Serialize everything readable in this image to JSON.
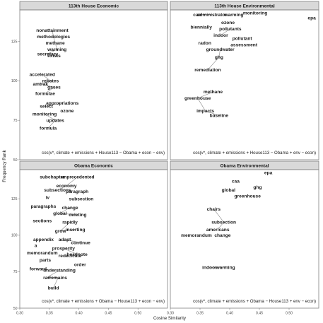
{
  "axis": {
    "xlabel": "Cosine Similarity",
    "ylabel": "Frequency Rank"
  },
  "chart_data": {
    "type": "scatter",
    "xlim": [
      0.3,
      0.55
    ],
    "ylim": [
      50,
      145
    ],
    "x_ticks": [
      0.3,
      0.35,
      0.4,
      0.45,
      0.5
    ],
    "x_tick_labels": [
      "0.30",
      "0.35",
      "0.40",
      "0.45",
      "0.50"
    ],
    "y_ticks": [
      50,
      75,
      100,
      125
    ],
    "y_tick_labels": [
      "50",
      "75",
      "100",
      "125"
    ],
    "grid": false,
    "panels": [
      {
        "title": "113th House Economic",
        "formula": "cos(v*, climate + emissions + House113 − Obama + econ − env)",
        "points": [
          {
            "label": "nonattainment",
            "x": 0.355,
            "y": 132
          },
          {
            "label": "methodologies",
            "x": 0.357,
            "y": 128
          },
          {
            "label": "methane",
            "x": 0.36,
            "y": 124
          },
          {
            "label": "warming",
            "x": 0.363,
            "y": 120
          },
          {
            "label": "secretary",
            "x": 0.347,
            "y": 117
          },
          {
            "label": "exists",
            "x": 0.358,
            "y": 116
          },
          {
            "label": "accelerated",
            "x": 0.338,
            "y": 104
          },
          {
            "label": "rebates",
            "x": 0.352,
            "y": 100
          },
          {
            "label": "amtrak",
            "x": 0.335,
            "y": 98
          },
          {
            "label": "gases",
            "x": 0.358,
            "y": 96
          },
          {
            "label": "formulae",
            "x": 0.343,
            "y": 92
          },
          {
            "label": "appropriations",
            "x": 0.372,
            "y": 86
          },
          {
            "label": "select",
            "x": 0.345,
            "y": 84
          },
          {
            "label": "ozone",
            "x": 0.38,
            "y": 81
          },
          {
            "label": "monitoring",
            "x": 0.342,
            "y": 79
          },
          {
            "label": "updates",
            "x": 0.36,
            "y": 75
          },
          {
            "label": "formula",
            "x": 0.348,
            "y": 70
          }
        ]
      },
      {
        "title": "113th House Environmental",
        "formula": "cos(v*, climate + emissions + House113 − Obama + env − econ)",
        "points": [
          {
            "label": "caa",
            "x": 0.345,
            "y": 142
          },
          {
            "label": "administrator",
            "x": 0.37,
            "y": 142
          },
          {
            "label": "warming",
            "x": 0.407,
            "y": 142
          },
          {
            "label": "monitoring",
            "x": 0.443,
            "y": 143
          },
          {
            "label": "epa",
            "x": 0.545,
            "y": 140
          },
          {
            "label": "ozone",
            "x": 0.397,
            "y": 137
          },
          {
            "label": "biennially",
            "x": 0.352,
            "y": 134
          },
          {
            "label": "pollutants",
            "x": 0.401,
            "y": 133
          },
          {
            "label": "indoor",
            "x": 0.385,
            "y": 129
          },
          {
            "label": "pollutant",
            "x": 0.421,
            "y": 127
          },
          {
            "label": "radon",
            "x": 0.358,
            "y": 124
          },
          {
            "label": "assessment",
            "x": 0.424,
            "y": 123
          },
          {
            "label": "groundwater",
            "x": 0.384,
            "y": 120
          },
          {
            "label": "ghg",
            "x": 0.382,
            "y": 115
          },
          {
            "label": "remediation",
            "x": 0.363,
            "y": 107
          },
          {
            "label": "methane",
            "x": 0.372,
            "y": 93
          },
          {
            "label": "greenhouse",
            "x": 0.346,
            "y": 89
          },
          {
            "label": "impacts",
            "x": 0.359,
            "y": 81
          },
          {
            "label": "baseline",
            "x": 0.382,
            "y": 78
          }
        ]
      },
      {
        "title": "Obama Economic",
        "formula": "cos(v*, climate + emissions + Obama − House113 + econ − env)",
        "points": [
          {
            "label": "subchapter",
            "x": 0.355,
            "y": 140
          },
          {
            "label": "unprecedented",
            "x": 0.398,
            "y": 140
          },
          {
            "label": "economy",
            "x": 0.379,
            "y": 134
          },
          {
            "label": "subsections",
            "x": 0.364,
            "y": 131
          },
          {
            "label": "paragraph",
            "x": 0.397,
            "y": 130
          },
          {
            "label": "iv",
            "x": 0.347,
            "y": 126
          },
          {
            "label": "subsection",
            "x": 0.404,
            "y": 125
          },
          {
            "label": "paragraphs",
            "x": 0.34,
            "y": 120
          },
          {
            "label": "change",
            "x": 0.385,
            "y": 119
          },
          {
            "label": "global",
            "x": 0.368,
            "y": 115
          },
          {
            "label": "deleting",
            "x": 0.398,
            "y": 114
          },
          {
            "label": "sections",
            "x": 0.338,
            "y": 110
          },
          {
            "label": "rapidly",
            "x": 0.385,
            "y": 109
          },
          {
            "label": "grow",
            "x": 0.369,
            "y": 103
          },
          {
            "label": "inserting",
            "x": 0.394,
            "y": 104
          },
          {
            "label": "appendix",
            "x": 0.34,
            "y": 97
          },
          {
            "label": "adapt",
            "x": 0.376,
            "y": 97
          },
          {
            "label": "continue",
            "x": 0.403,
            "y": 95
          },
          {
            "label": "a",
            "x": 0.327,
            "y": 93
          },
          {
            "label": "prosperity",
            "x": 0.374,
            "y": 91
          },
          {
            "label": "headnote",
            "x": 0.397,
            "y": 87
          },
          {
            "label": "memorandum",
            "x": 0.338,
            "y": 88
          },
          {
            "label": "redecicate",
            "x": 0.385,
            "y": 86
          },
          {
            "label": "parts",
            "x": 0.343,
            "y": 83
          },
          {
            "label": "order",
            "x": 0.402,
            "y": 80
          },
          {
            "label": "forward",
            "x": 0.331,
            "y": 77
          },
          {
            "label": "understanding",
            "x": 0.367,
            "y": 76
          },
          {
            "label": "rari",
            "x": 0.346,
            "y": 71
          },
          {
            "label": "remains",
            "x": 0.365,
            "y": 71
          },
          {
            "label": "build",
            "x": 0.357,
            "y": 64
          }
        ]
      },
      {
        "title": "Obama Environmental",
        "formula": "cos(v*, climate + emissions + Obama − House113 + env − econ)",
        "points": [
          {
            "label": "epa",
            "x": 0.465,
            "y": 143
          },
          {
            "label": "caa",
            "x": 0.41,
            "y": 137
          },
          {
            "label": "ghg",
            "x": 0.447,
            "y": 133
          },
          {
            "label": "global",
            "x": 0.398,
            "y": 131
          },
          {
            "label": "greenhouse",
            "x": 0.43,
            "y": 127
          },
          {
            "label": "chairs",
            "x": 0.373,
            "y": 118
          },
          {
            "label": "subsection",
            "x": 0.39,
            "y": 109
          },
          {
            "label": "americans",
            "x": 0.38,
            "y": 104
          },
          {
            "label": "memorandum",
            "x": 0.344,
            "y": 100
          },
          {
            "label": "change",
            "x": 0.388,
            "y": 100
          },
          {
            "label": "indoor",
            "x": 0.366,
            "y": 78
          },
          {
            "label": "warming",
            "x": 0.393,
            "y": 78
          }
        ]
      }
    ]
  }
}
